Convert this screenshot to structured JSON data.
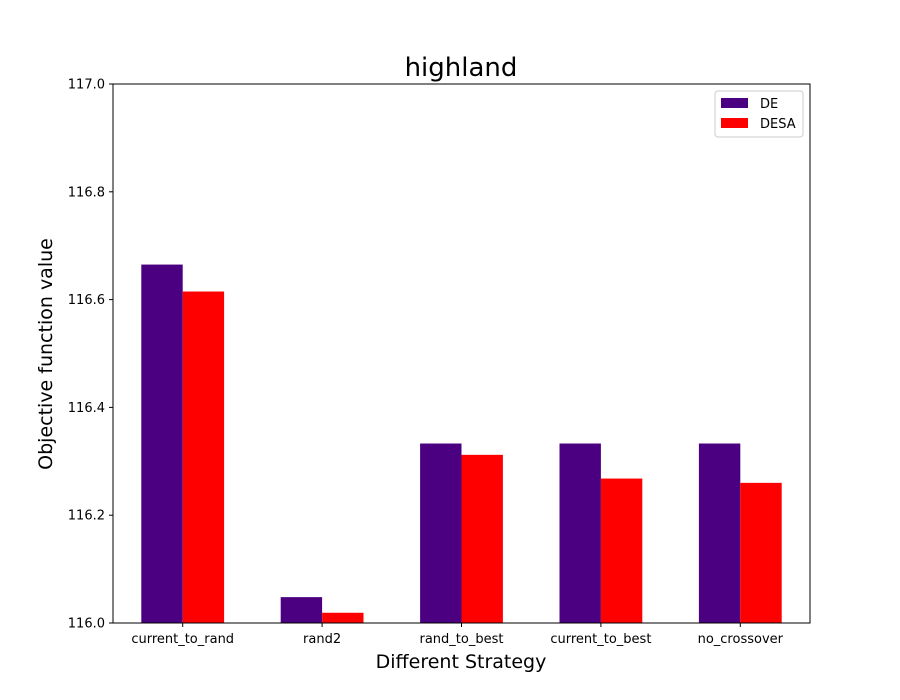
{
  "chart_data": {
    "type": "bar",
    "title": "highland",
    "xlabel": "Different Strategy",
    "ylabel": "Objective function value",
    "categories": [
      "current_to_rand",
      "rand2",
      "rand_to_best",
      "current_to_best",
      "no_crossover"
    ],
    "series": [
      {
        "name": "DE",
        "color": "#4b0082",
        "values": [
          116.665,
          116.048,
          116.333,
          116.333,
          116.333
        ]
      },
      {
        "name": "DESA",
        "color": "#ff0000",
        "values": [
          116.615,
          116.019,
          116.312,
          116.268,
          116.26
        ]
      }
    ],
    "ylim": [
      116.0,
      117.0
    ],
    "yticks": [
      "116.0",
      "116.2",
      "116.4",
      "116.6",
      "116.8",
      "117.0"
    ],
    "ytick_values": [
      116.0,
      116.2,
      116.4,
      116.6,
      116.8,
      117.0
    ],
    "grid": false,
    "legend_position": "top-right"
  }
}
